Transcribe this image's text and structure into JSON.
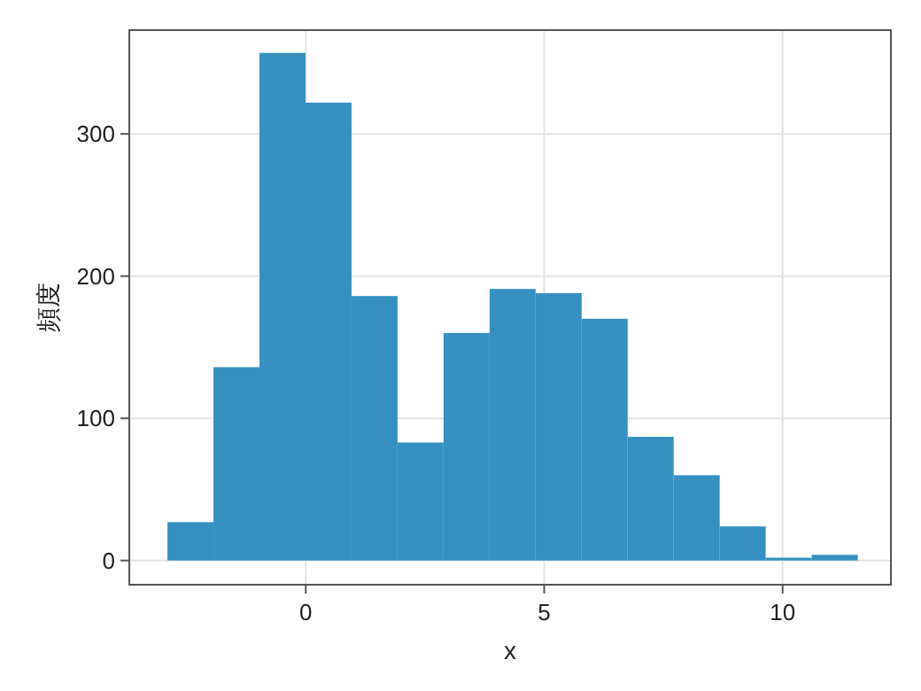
{
  "chart_data": {
    "type": "histogram",
    "xlabel": "x",
    "ylabel": "頻度",
    "bins": [
      -2.9,
      -1.935,
      -0.97,
      -0.005,
      0.96,
      1.925,
      2.89,
      3.855,
      4.82,
      5.785,
      6.75,
      7.715,
      8.68,
      9.645,
      10.61,
      11.575
    ],
    "values": [
      27,
      136,
      357,
      322,
      186,
      83,
      160,
      191,
      188,
      170,
      87,
      60,
      24,
      2,
      4
    ],
    "color": "#3590c1",
    "xlim": [
      -3.7,
      12.27
    ],
    "ylim": [
      -17,
      373
    ],
    "xticks": [
      0,
      5,
      10
    ],
    "yticks": [
      0,
      100,
      200,
      300
    ],
    "grid": true
  }
}
